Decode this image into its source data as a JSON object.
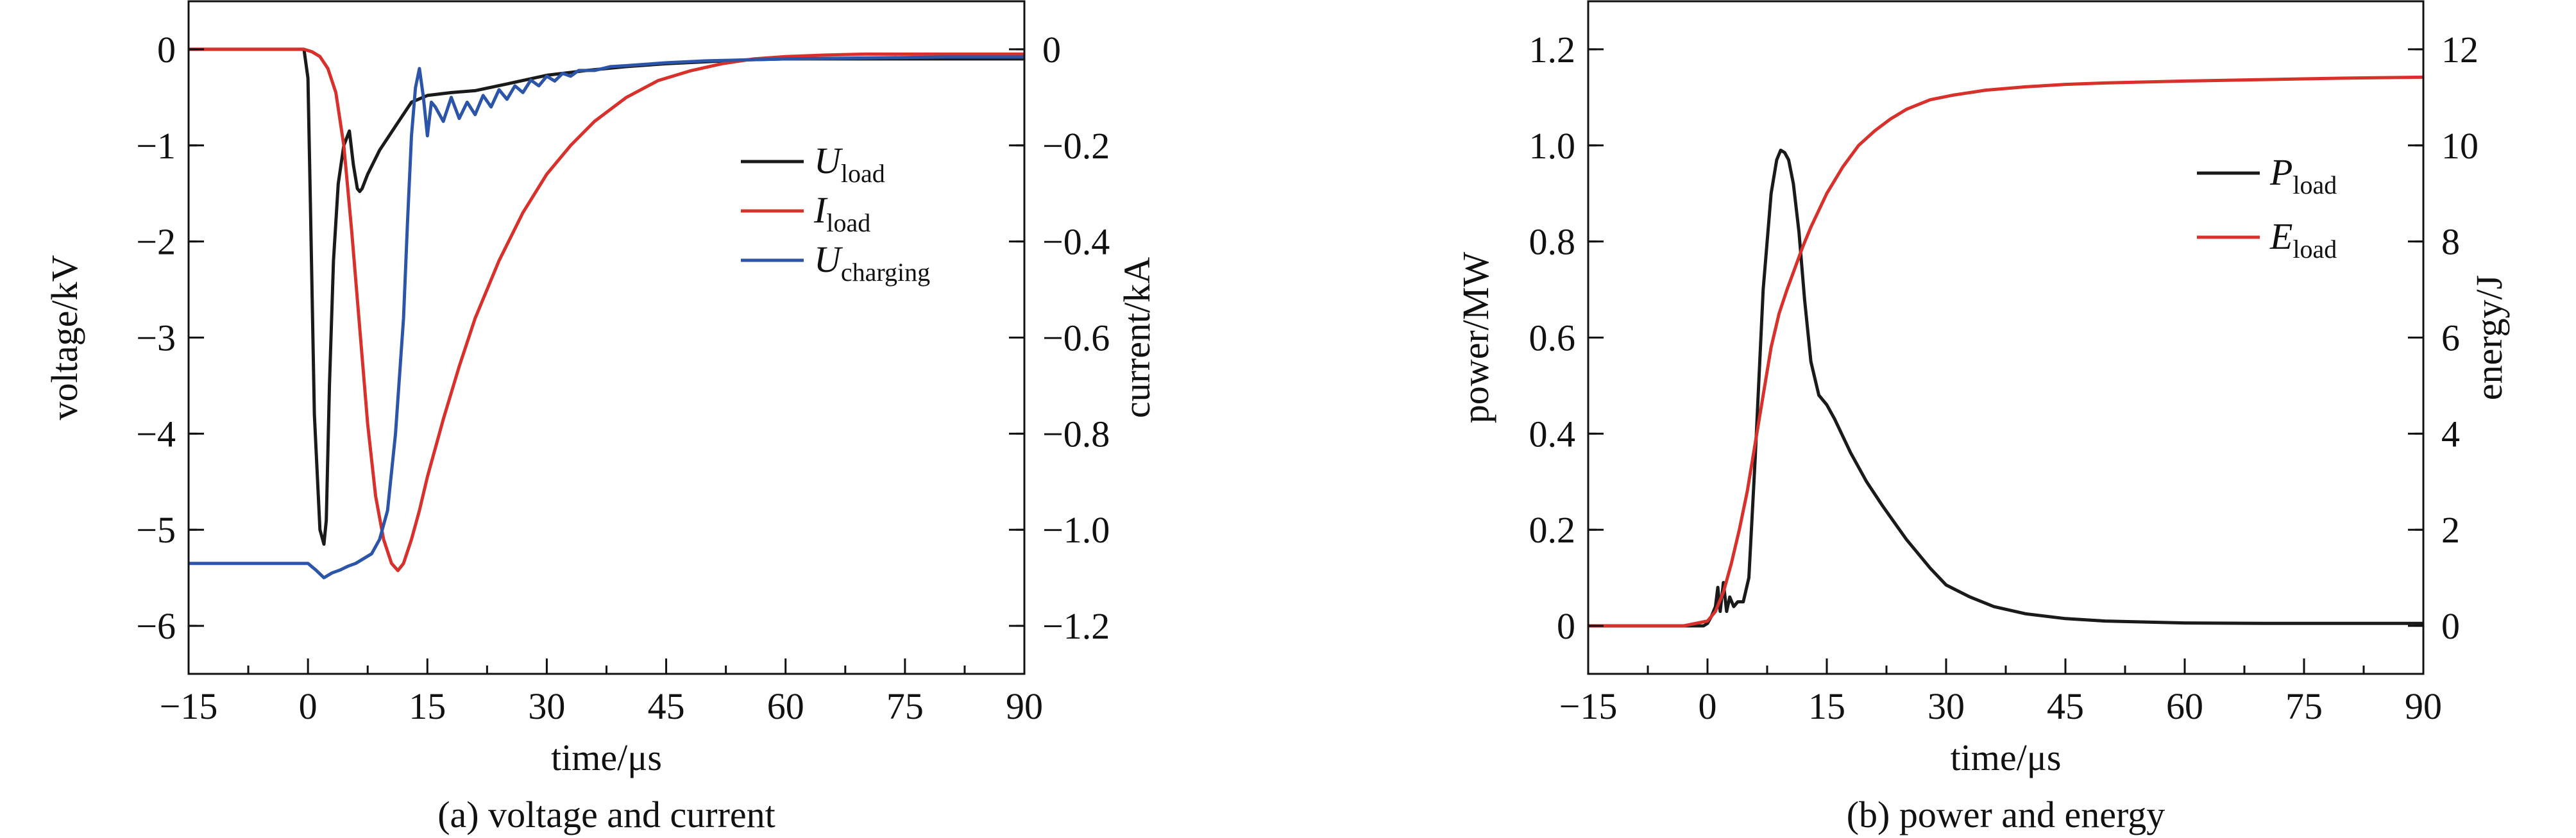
{
  "chart_data": [
    {
      "type": "line",
      "caption": "(a) voltage and current",
      "xlabel": "time/μs",
      "ylabel": "voltage/kV",
      "y2label": "current/kA",
      "xlim": [
        -15,
        90
      ],
      "ylim": [
        -6.5,
        0.5
      ],
      "y2lim": [
        -1.3,
        0.1
      ],
      "x_ticks": [
        -15,
        0,
        15,
        30,
        45,
        60,
        75,
        90
      ],
      "x_tick_labels": [
        "−15",
        "0",
        "15",
        "30",
        "45",
        "60",
        "75",
        "90"
      ],
      "y_ticks": [
        0,
        -1,
        -2,
        -3,
        -4,
        -5,
        -6
      ],
      "y_tick_labels": [
        "0",
        "−1",
        "−2",
        "−3",
        "−4",
        "−5",
        "−6"
      ],
      "y2_ticks": [
        0,
        -0.2,
        -0.4,
        -0.6,
        -0.8,
        -1.0,
        -1.2
      ],
      "y2_tick_labels": [
        "0",
        "−0.2",
        "−0.4",
        "−0.6",
        "−0.8",
        "−1.0",
        "−1.2"
      ],
      "legend_position": "right-middle",
      "series": [
        {
          "label_main": "U",
          "label_sub": "load",
          "axis": "left",
          "color": "#1a1a1a",
          "x": [
            -15,
            -0.5,
            0,
            0.3,
            0.8,
            1.5,
            2,
            2.3,
            2.7,
            3.2,
            3.8,
            4.5,
            5.2,
            5.7,
            6.2,
            6.5,
            6.8,
            7.5,
            9,
            11,
            13,
            15,
            18,
            21,
            25,
            30,
            35,
            40,
            45,
            50,
            55,
            60,
            65,
            70,
            75,
            80,
            85,
            90
          ],
          "y": [
            0,
            0,
            -0.3,
            -1.6,
            -3.8,
            -5.0,
            -5.15,
            -4.9,
            -3.5,
            -2.2,
            -1.4,
            -1.0,
            -0.85,
            -1.2,
            -1.45,
            -1.48,
            -1.45,
            -1.3,
            -1.05,
            -0.8,
            -0.55,
            -0.48,
            -0.45,
            -0.43,
            -0.36,
            -0.27,
            -0.22,
            -0.18,
            -0.15,
            -0.13,
            -0.11,
            -0.1,
            -0.1,
            -0.1,
            -0.1,
            -0.1,
            -0.1,
            -0.1
          ]
        },
        {
          "label_main": "I",
          "label_sub": "load",
          "axis": "right",
          "color": "#d8302a",
          "x": [
            -15,
            -0.5,
            0.5,
            1.5,
            2.5,
            3.5,
            4.5,
            5.5,
            6.5,
            7.5,
            8.5,
            9.5,
            10.5,
            11.3,
            12,
            13,
            14,
            15,
            17,
            19,
            21,
            24,
            27,
            30,
            33,
            36,
            40,
            44,
            48,
            52,
            56,
            60,
            65,
            70,
            75,
            80,
            85,
            90
          ],
          "y": [
            0,
            0,
            -0.005,
            -0.015,
            -0.04,
            -0.09,
            -0.2,
            -0.38,
            -0.58,
            -0.78,
            -0.93,
            -1.02,
            -1.07,
            -1.085,
            -1.07,
            -1.02,
            -0.96,
            -0.89,
            -0.77,
            -0.66,
            -0.56,
            -0.44,
            -0.34,
            -0.26,
            -0.2,
            -0.15,
            -0.1,
            -0.065,
            -0.045,
            -0.03,
            -0.02,
            -0.015,
            -0.012,
            -0.01,
            -0.01,
            -0.01,
            -0.01,
            -0.01
          ]
        },
        {
          "label_main": "U",
          "label_sub": "charging",
          "axis": "left",
          "color": "#2c55a9",
          "x": [
            -15,
            0,
            1,
            2,
            3,
            4,
            5,
            6,
            7,
            8,
            9,
            10,
            11,
            12,
            12.5,
            13,
            13.5,
            14,
            14.5,
            15,
            15.5,
            16,
            17,
            18,
            19,
            20,
            21,
            22,
            23,
            24,
            25,
            26,
            27,
            28,
            29,
            30,
            31,
            32,
            33,
            34,
            36,
            38,
            40,
            45,
            50,
            60,
            70,
            80,
            90
          ],
          "y": [
            -5.35,
            -5.35,
            -5.42,
            -5.5,
            -5.45,
            -5.42,
            -5.38,
            -5.35,
            -5.3,
            -5.25,
            -5.1,
            -4.8,
            -4.0,
            -2.8,
            -1.8,
            -0.9,
            -0.4,
            -0.2,
            -0.5,
            -0.9,
            -0.55,
            -0.6,
            -0.75,
            -0.5,
            -0.72,
            -0.55,
            -0.68,
            -0.48,
            -0.6,
            -0.42,
            -0.52,
            -0.38,
            -0.45,
            -0.32,
            -0.38,
            -0.28,
            -0.33,
            -0.25,
            -0.28,
            -0.22,
            -0.22,
            -0.18,
            -0.17,
            -0.14,
            -0.12,
            -0.1,
            -0.09,
            -0.08,
            -0.08
          ]
        }
      ]
    },
    {
      "type": "line",
      "caption": "(b) power and energy",
      "xlabel": "time/μs",
      "ylabel": "power/MW",
      "y2label": "energy/J",
      "xlim": [
        -15,
        90
      ],
      "ylim": [
        -0.1,
        1.3
      ],
      "y2lim": [
        -1,
        13
      ],
      "x_ticks": [
        -15,
        0,
        15,
        30,
        45,
        60,
        75,
        90
      ],
      "x_tick_labels": [
        "−15",
        "0",
        "15",
        "30",
        "45",
        "60",
        "75",
        "90"
      ],
      "y_ticks": [
        0,
        0.2,
        0.4,
        0.6,
        0.8,
        1.0,
        1.2
      ],
      "y_tick_labels": [
        "0",
        "0.2",
        "0.4",
        "0.6",
        "0.8",
        "1.0",
        "1.2"
      ],
      "y2_ticks": [
        0,
        2,
        4,
        6,
        8,
        10,
        12
      ],
      "y2_tick_labels": [
        "0",
        "2",
        "4",
        "6",
        "8",
        "10",
        "12"
      ],
      "legend_position": "top-right",
      "series": [
        {
          "label_main": "P",
          "label_sub": "load",
          "axis": "left",
          "color": "#1a1a1a",
          "x": [
            -15,
            -0.5,
            0,
            0.5,
            1,
            1.3,
            1.6,
            2,
            2.4,
            2.8,
            3.3,
            3.8,
            4.5,
            5.2,
            6,
            7,
            8,
            8.7,
            9.2,
            9.7,
            10.2,
            10.8,
            11.5,
            12.2,
            13,
            14,
            15,
            16,
            18,
            20,
            22,
            25,
            28,
            30,
            33,
            36,
            40,
            45,
            50,
            60,
            70,
            80,
            90
          ],
          "y": [
            0,
            0,
            0.005,
            0.02,
            0.04,
            0.08,
            0.03,
            0.09,
            0.03,
            0.06,
            0.04,
            0.05,
            0.05,
            0.1,
            0.35,
            0.7,
            0.9,
            0.97,
            0.99,
            0.985,
            0.97,
            0.92,
            0.82,
            0.68,
            0.55,
            0.48,
            0.46,
            0.43,
            0.36,
            0.3,
            0.25,
            0.18,
            0.12,
            0.085,
            0.06,
            0.04,
            0.025,
            0.015,
            0.01,
            0.006,
            0.005,
            0.005,
            0.005
          ]
        },
        {
          "label_main": "E",
          "label_sub": "load",
          "axis": "right",
          "color": "#d8302a",
          "x": [
            -15,
            -3,
            0,
            1,
            2,
            3,
            4,
            5,
            6,
            7,
            8,
            9,
            10,
            11,
            12,
            13,
            14,
            15,
            17,
            19,
            21,
            23,
            25,
            28,
            31,
            35,
            40,
            45,
            50,
            55,
            60,
            70,
            80,
            90
          ],
          "y": [
            0,
            0,
            0.1,
            0.3,
            0.7,
            1.3,
            2.0,
            2.8,
            3.8,
            4.8,
            5.8,
            6.5,
            7.0,
            7.45,
            7.9,
            8.3,
            8.65,
            9.0,
            9.55,
            10.0,
            10.3,
            10.55,
            10.75,
            10.95,
            11.05,
            11.15,
            11.22,
            11.27,
            11.3,
            11.32,
            11.34,
            11.37,
            11.4,
            11.42
          ]
        }
      ]
    }
  ]
}
